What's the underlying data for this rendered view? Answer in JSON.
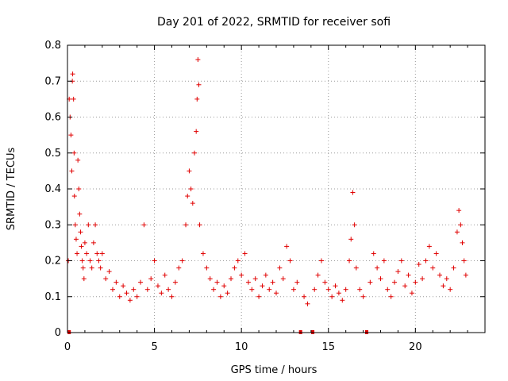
{
  "chart_data": {
    "type": "scatter",
    "title": "Day 201 of 2022, SRMTID for receiver sofi",
    "xlabel": "GPS time / hours",
    "ylabel": "SRMTID / TECUs",
    "xlim": [
      0,
      24
    ],
    "ylim": [
      0,
      0.8
    ],
    "xticks": [
      0,
      5,
      10,
      15,
      20
    ],
    "xtick_labels": [
      "0",
      "5",
      "10",
      "15",
      "20"
    ],
    "yticks": [
      0,
      0.1,
      0.2,
      0.3,
      0.4,
      0.5,
      0.6,
      0.7,
      0.8
    ],
    "ytick_labels": [
      "0",
      "0.1",
      "0.2",
      "0.3",
      "0.4",
      "0.5",
      "0.6",
      "0.7",
      "0.8"
    ],
    "grid": true,
    "marker": "plus",
    "color": "#e00000",
    "series": [
      {
        "name": "SRMTID",
        "points": [
          [
            0.05,
            0.2
          ],
          [
            0.1,
            0.65
          ],
          [
            0.15,
            0.6
          ],
          [
            0.2,
            0.55
          ],
          [
            0.25,
            0.45
          ],
          [
            0.28,
            0.7
          ],
          [
            0.3,
            0.72
          ],
          [
            0.35,
            0.65
          ],
          [
            0.38,
            0.5
          ],
          [
            0.4,
            0.38
          ],
          [
            0.45,
            0.3
          ],
          [
            0.5,
            0.26
          ],
          [
            0.55,
            0.22
          ],
          [
            0.6,
            0.48
          ],
          [
            0.65,
            0.4
          ],
          [
            0.7,
            0.33
          ],
          [
            0.75,
            0.28
          ],
          [
            0.8,
            0.24
          ],
          [
            0.85,
            0.2
          ],
          [
            0.9,
            0.18
          ],
          [
            0.95,
            0.15
          ],
          [
            1.0,
            0.25
          ],
          [
            1.1,
            0.22
          ],
          [
            1.2,
            0.3
          ],
          [
            1.3,
            0.2
          ],
          [
            1.4,
            0.18
          ],
          [
            1.5,
            0.25
          ],
          [
            1.6,
            0.3
          ],
          [
            1.7,
            0.22
          ],
          [
            1.8,
            0.2
          ],
          [
            1.9,
            0.18
          ],
          [
            2.0,
            0.22
          ],
          [
            2.2,
            0.15
          ],
          [
            2.4,
            0.17
          ],
          [
            2.6,
            0.12
          ],
          [
            2.8,
            0.14
          ],
          [
            3.0,
            0.1
          ],
          [
            3.2,
            0.13
          ],
          [
            3.4,
            0.11
          ],
          [
            3.6,
            0.09
          ],
          [
            3.8,
            0.12
          ],
          [
            4.0,
            0.1
          ],
          [
            4.2,
            0.14
          ],
          [
            4.4,
            0.3
          ],
          [
            4.6,
            0.12
          ],
          [
            4.8,
            0.15
          ],
          [
            5.0,
            0.2
          ],
          [
            5.2,
            0.13
          ],
          [
            5.4,
            0.11
          ],
          [
            5.6,
            0.16
          ],
          [
            5.8,
            0.12
          ],
          [
            6.0,
            0.1
          ],
          [
            6.2,
            0.14
          ],
          [
            6.4,
            0.18
          ],
          [
            6.6,
            0.2
          ],
          [
            6.8,
            0.3
          ],
          [
            6.9,
            0.38
          ],
          [
            7.0,
            0.45
          ],
          [
            7.1,
            0.4
          ],
          [
            7.2,
            0.36
          ],
          [
            7.3,
            0.5
          ],
          [
            7.4,
            0.56
          ],
          [
            7.45,
            0.65
          ],
          [
            7.5,
            0.76
          ],
          [
            7.55,
            0.69
          ],
          [
            7.6,
            0.3
          ],
          [
            7.8,
            0.22
          ],
          [
            8.0,
            0.18
          ],
          [
            8.2,
            0.15
          ],
          [
            8.4,
            0.12
          ],
          [
            8.6,
            0.14
          ],
          [
            8.8,
            0.1
          ],
          [
            9.0,
            0.13
          ],
          [
            9.2,
            0.11
          ],
          [
            9.4,
            0.15
          ],
          [
            9.6,
            0.18
          ],
          [
            9.8,
            0.2
          ],
          [
            10.0,
            0.16
          ],
          [
            10.2,
            0.22
          ],
          [
            10.4,
            0.14
          ],
          [
            10.6,
            0.12
          ],
          [
            10.8,
            0.15
          ],
          [
            11.0,
            0.1
          ],
          [
            11.2,
            0.13
          ],
          [
            11.4,
            0.16
          ],
          [
            11.6,
            0.12
          ],
          [
            11.8,
            0.14
          ],
          [
            12.0,
            0.11
          ],
          [
            12.2,
            0.18
          ],
          [
            12.4,
            0.15
          ],
          [
            12.6,
            0.24
          ],
          [
            12.8,
            0.2
          ],
          [
            13.0,
            0.12
          ],
          [
            13.2,
            0.14
          ],
          [
            13.6,
            0.1
          ],
          [
            13.8,
            0.08
          ],
          [
            14.2,
            0.12
          ],
          [
            14.4,
            0.16
          ],
          [
            14.6,
            0.2
          ],
          [
            14.8,
            0.14
          ],
          [
            15.0,
            0.12
          ],
          [
            15.2,
            0.1
          ],
          [
            15.4,
            0.13
          ],
          [
            15.6,
            0.11
          ],
          [
            15.8,
            0.09
          ],
          [
            16.0,
            0.12
          ],
          [
            16.2,
            0.2
          ],
          [
            16.3,
            0.26
          ],
          [
            16.4,
            0.39
          ],
          [
            16.5,
            0.3
          ],
          [
            16.6,
            0.18
          ],
          [
            16.8,
            0.12
          ],
          [
            17.0,
            0.1
          ],
          [
            17.4,
            0.14
          ],
          [
            17.6,
            0.22
          ],
          [
            17.8,
            0.18
          ],
          [
            18.0,
            0.15
          ],
          [
            18.2,
            0.2
          ],
          [
            18.4,
            0.12
          ],
          [
            18.6,
            0.1
          ],
          [
            18.8,
            0.14
          ],
          [
            19.0,
            0.17
          ],
          [
            19.2,
            0.2
          ],
          [
            19.4,
            0.13
          ],
          [
            19.6,
            0.16
          ],
          [
            19.8,
            0.11
          ],
          [
            20.0,
            0.14
          ],
          [
            20.2,
            0.19
          ],
          [
            20.4,
            0.15
          ],
          [
            20.6,
            0.2
          ],
          [
            20.8,
            0.24
          ],
          [
            21.0,
            0.18
          ],
          [
            21.2,
            0.22
          ],
          [
            21.4,
            0.16
          ],
          [
            21.6,
            0.13
          ],
          [
            21.8,
            0.15
          ],
          [
            22.0,
            0.12
          ],
          [
            22.2,
            0.18
          ],
          [
            22.4,
            0.28
          ],
          [
            22.5,
            0.34
          ],
          [
            22.6,
            0.3
          ],
          [
            22.7,
            0.25
          ],
          [
            22.8,
            0.2
          ],
          [
            22.9,
            0.16
          ]
        ]
      }
    ],
    "data_gaps": [
      0.1,
      13.4,
      14.1,
      17.2
    ]
  }
}
